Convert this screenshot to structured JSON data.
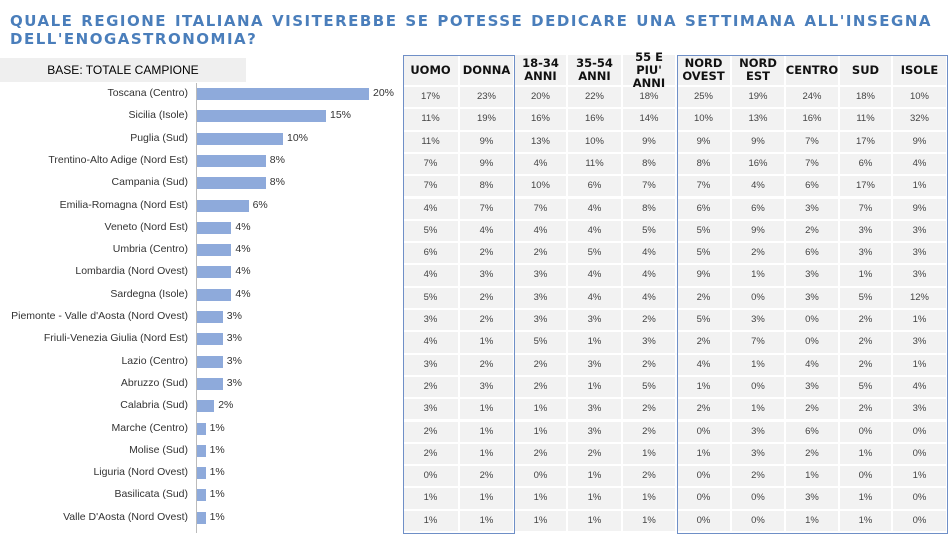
{
  "title": "QUALE REGIONE ITALIANA VISITEREBBE SE POTESSE DEDICARE UNA SETTIMANA ALL'INSEGNA DELL'ENOGASTRONOMIA?",
  "base_label": "BASE: TOTALE CAMPIONE",
  "colors": {
    "title": "#4a7ebb",
    "bar": "#8eaadb",
    "border": "#6f8fc7",
    "cell": "#f2f2f2"
  },
  "chart_data": {
    "type": "bar",
    "orientation": "horizontal",
    "categories": [
      "Toscana (Centro)",
      "Sicilia (Isole)",
      "Puglia (Sud)",
      "Trentino-Alto Adige (Nord Est)",
      "Campania (Sud)",
      "Emilia-Romagna (Nord Est)",
      "Veneto (Nord Est)",
      "Umbria (Centro)",
      "Lombardia (Nord Ovest)",
      "Sardegna (Isole)",
      "Piemonte - Valle d'Aosta (Nord Ovest)",
      "Friuli-Venezia Giulia (Nord Est)",
      "Lazio (Centro)",
      "Abruzzo (Sud)",
      "Calabria (Sud)",
      "Marche (Centro)",
      "Molise (Sud)",
      "Liguria (Nord Ovest)",
      "Basilicata (Sud)",
      "Valle D'Aosta (Nord Ovest)"
    ],
    "values": [
      20,
      15,
      10,
      8,
      8,
      6,
      4,
      4,
      4,
      4,
      3,
      3,
      3,
      3,
      2,
      1,
      1,
      1,
      1,
      1
    ],
    "value_labels": [
      "20%",
      "15%",
      "10%",
      "8%",
      "8%",
      "6%",
      "4%",
      "4%",
      "4%",
      "4%",
      "3%",
      "3%",
      "3%",
      "3%",
      "2%",
      "1%",
      "1%",
      "1%",
      "1%",
      "1%"
    ],
    "unit": "%"
  },
  "table": {
    "headers": [
      [
        "UOMO"
      ],
      [
        "DONNA"
      ],
      [
        "18-34",
        "ANNI"
      ],
      [
        "35-54",
        "ANNI"
      ],
      [
        "55 E PIU'",
        "ANNI"
      ],
      [
        "NORD",
        "OVEST"
      ],
      [
        "NORD",
        "EST"
      ],
      [
        "CENTRO"
      ],
      [
        "SUD"
      ],
      [
        "ISOLE"
      ]
    ],
    "rows": [
      [
        "17%",
        "23%",
        "20%",
        "22%",
        "18%",
        "25%",
        "19%",
        "24%",
        "18%",
        "10%"
      ],
      [
        "11%",
        "19%",
        "16%",
        "16%",
        "14%",
        "10%",
        "13%",
        "16%",
        "11%",
        "32%"
      ],
      [
        "11%",
        "9%",
        "13%",
        "10%",
        "9%",
        "9%",
        "9%",
        "7%",
        "17%",
        "9%"
      ],
      [
        "7%",
        "9%",
        "4%",
        "11%",
        "8%",
        "8%",
        "16%",
        "7%",
        "6%",
        "4%"
      ],
      [
        "7%",
        "8%",
        "10%",
        "6%",
        "7%",
        "7%",
        "4%",
        "6%",
        "17%",
        "1%"
      ],
      [
        "4%",
        "7%",
        "7%",
        "4%",
        "8%",
        "6%",
        "6%",
        "3%",
        "7%",
        "9%"
      ],
      [
        "5%",
        "4%",
        "4%",
        "4%",
        "5%",
        "5%",
        "9%",
        "2%",
        "3%",
        "3%"
      ],
      [
        "6%",
        "2%",
        "2%",
        "5%",
        "4%",
        "5%",
        "2%",
        "6%",
        "3%",
        "3%"
      ],
      [
        "4%",
        "3%",
        "3%",
        "4%",
        "4%",
        "9%",
        "1%",
        "3%",
        "1%",
        "3%"
      ],
      [
        "5%",
        "2%",
        "3%",
        "4%",
        "4%",
        "2%",
        "0%",
        "3%",
        "5%",
        "12%"
      ],
      [
        "3%",
        "2%",
        "3%",
        "3%",
        "2%",
        "5%",
        "3%",
        "0%",
        "2%",
        "1%"
      ],
      [
        "4%",
        "1%",
        "5%",
        "1%",
        "3%",
        "2%",
        "7%",
        "0%",
        "2%",
        "3%"
      ],
      [
        "3%",
        "2%",
        "2%",
        "3%",
        "2%",
        "4%",
        "1%",
        "4%",
        "2%",
        "1%"
      ],
      [
        "2%",
        "3%",
        "2%",
        "1%",
        "5%",
        "1%",
        "0%",
        "3%",
        "5%",
        "4%"
      ],
      [
        "3%",
        "1%",
        "1%",
        "3%",
        "2%",
        "2%",
        "1%",
        "2%",
        "2%",
        "3%"
      ],
      [
        "2%",
        "1%",
        "1%",
        "3%",
        "2%",
        "0%",
        "3%",
        "6%",
        "0%",
        "0%"
      ],
      [
        "2%",
        "1%",
        "2%",
        "2%",
        "1%",
        "1%",
        "3%",
        "2%",
        "1%",
        "0%"
      ],
      [
        "0%",
        "2%",
        "0%",
        "1%",
        "2%",
        "0%",
        "2%",
        "1%",
        "0%",
        "1%"
      ],
      [
        "1%",
        "1%",
        "1%",
        "1%",
        "1%",
        "0%",
        "0%",
        "3%",
        "1%",
        "0%"
      ],
      [
        "1%",
        "1%",
        "1%",
        "1%",
        "1%",
        "0%",
        "0%",
        "1%",
        "1%",
        "0%"
      ]
    ]
  }
}
